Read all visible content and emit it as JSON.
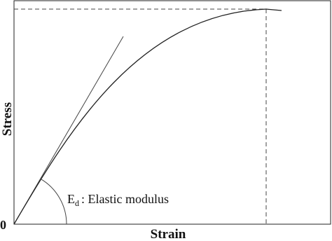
{
  "axes": {
    "x_label": "Strain",
    "y_label": "Stress",
    "origin": "0"
  },
  "annotation": {
    "symbol": "E",
    "subscript": "d",
    "text": ": Elastic modulus"
  }
}
